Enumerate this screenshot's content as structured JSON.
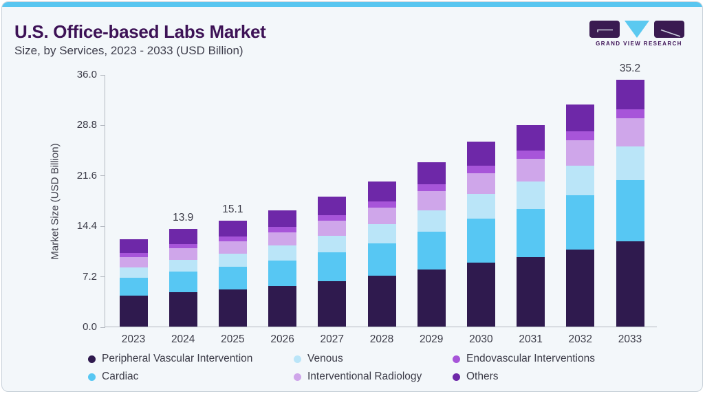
{
  "header": {
    "title": "U.S. Office-based Labs Market",
    "subtitle": "Size, by Services, 2023 - 2033 (USD Billion)"
  },
  "brand": {
    "name": "GRAND VIEW RESEARCH",
    "dark_color": "#3a1b51",
    "blue_color": "#5bc9f0"
  },
  "accent_color": "#59c6f0",
  "chart_data": {
    "type": "bar",
    "stacked": true,
    "title": "U.S. Office-based Labs Market Size, by Services, 2023 - 2033 (USD Billion)",
    "xlabel": "",
    "ylabel": "Market Size (USD Billion)",
    "ylim": [
      0,
      36
    ],
    "yticks": [
      0.0,
      7.2,
      14.4,
      21.6,
      28.8,
      36.0
    ],
    "grid": false,
    "legend_position": "bottom",
    "categories": [
      "2023",
      "2024",
      "2025",
      "2026",
      "2027",
      "2028",
      "2029",
      "2030",
      "2031",
      "2032",
      "2033"
    ],
    "series": [
      {
        "name": "Peripheral Vascular Intervention",
        "color": "#2f1a4e",
        "values": [
          4.38,
          4.9,
          5.31,
          5.82,
          6.47,
          7.22,
          8.15,
          9.17,
          9.95,
          10.96,
          12.14
        ]
      },
      {
        "name": "Cardiac",
        "color": "#57c7f3",
        "values": [
          2.54,
          2.91,
          3.23,
          3.62,
          4.11,
          4.69,
          5.4,
          6.21,
          6.87,
          7.73,
          8.73
        ]
      },
      {
        "name": "Venous",
        "color": "#bae5f8",
        "values": [
          1.53,
          1.73,
          1.9,
          2.11,
          2.38,
          2.69,
          3.07,
          3.51,
          3.85,
          4.3,
          4.82
        ]
      },
      {
        "name": "Interventional Radiology",
        "color": "#cfa6ea",
        "values": [
          1.43,
          1.6,
          1.73,
          1.9,
          2.12,
          2.37,
          2.68,
          3.02,
          3.28,
          3.62,
          4.01
        ]
      },
      {
        "name": "Endovascular Interventions",
        "color": "#a755d9",
        "values": [
          0.61,
          0.67,
          0.71,
          0.76,
          0.83,
          0.9,
          0.99,
          1.09,
          1.15,
          1.24,
          1.34
        ]
      },
      {
        "name": "Others",
        "color": "#6e28a8",
        "values": [
          1.93,
          2.12,
          2.24,
          2.4,
          2.6,
          2.84,
          3.12,
          3.42,
          3.6,
          3.86,
          4.15
        ]
      }
    ],
    "bar_labels": [
      "",
      "13.9",
      "15.1",
      "",
      "",
      "",
      "",
      "",
      "",
      "",
      "35.2"
    ],
    "totals_labeled": {
      "2024": 13.9,
      "2025": 15.1,
      "2033": 35.2
    }
  },
  "legend": {
    "items": [
      {
        "label": "Peripheral Vascular Intervention",
        "color": "#2f1a4e"
      },
      {
        "label": "Venous",
        "color": "#bae5f8"
      },
      {
        "label": "Endovascular Interventions",
        "color": "#a755d9"
      },
      {
        "label": "Cardiac",
        "color": "#57c7f3"
      },
      {
        "label": "Interventional Radiology",
        "color": "#cfa6ea"
      },
      {
        "label": "Others",
        "color": "#6e28a8"
      }
    ]
  }
}
